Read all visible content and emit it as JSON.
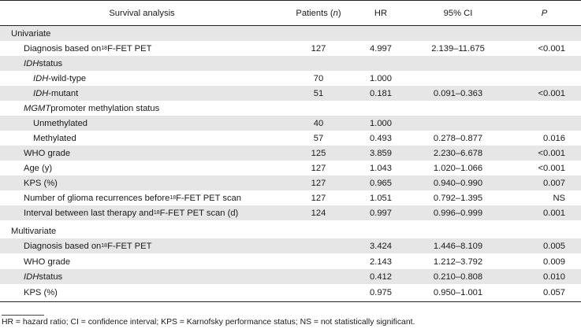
{
  "header": {
    "analysis": "Survival analysis",
    "patients_prefix": "Patients (",
    "patients_n": "n",
    "patients_suffix": ")",
    "hr": "HR",
    "ci": "95% CI",
    "p": "P"
  },
  "rows": {
    "univariate": {
      "label": "Univariate"
    },
    "diag_u": {
      "pre": "Diagnosis based on ",
      "sup": "18",
      "post": "F-FET PET",
      "patients": "127",
      "hr": "4.997",
      "ci": "2.139–11.675",
      "p": "<0.001"
    },
    "idh_status": {
      "ital": "IDH",
      "post": " status"
    },
    "idh_wt": {
      "ital": "IDH",
      "post": "-wild-type",
      "patients": "70",
      "hr": "1.000"
    },
    "idh_mut": {
      "ital": "IDH",
      "post": "-mutant",
      "patients": "51",
      "hr": "0.181",
      "ci": "0.091–0.363",
      "p": "<0.001"
    },
    "mgmt": {
      "ital": "MGMT",
      "post": " promoter methylation status"
    },
    "unmeth": {
      "label": "Unmethylated",
      "patients": "40",
      "hr": "1.000"
    },
    "meth": {
      "label": "Methylated",
      "patients": "57",
      "hr": "0.493",
      "ci": "0.278–0.877",
      "p": "0.016"
    },
    "who_u": {
      "label": "WHO grade",
      "patients": "125",
      "hr": "3.859",
      "ci": "2.230–6.678",
      "p": "<0.001"
    },
    "age": {
      "label": "Age (y)",
      "patients": "127",
      "hr": "1.043",
      "ci": "1.020–1.066",
      "p": "<0.001"
    },
    "kps_u": {
      "label": "KPS (%)",
      "patients": "127",
      "hr": "0.965",
      "ci": "0.940–0.990",
      "p": "0.007"
    },
    "recur": {
      "pre": "Number of glioma recurrences before ",
      "sup": "18",
      "post": "F-FET PET scan",
      "patients": "127",
      "hr": "1.051",
      "ci": "0.792–1.395",
      "p": "NS"
    },
    "interval": {
      "pre": "Interval between last therapy and ",
      "sup": "18",
      "post": "F-FET PET scan (d)",
      "patients": "124",
      "hr": "0.997",
      "ci": "0.996–0.999",
      "p": "0.001"
    },
    "multivariate": {
      "label": "Multivariate"
    },
    "diag_m": {
      "pre": "Diagnosis based on ",
      "sup": "18",
      "post": "F-FET PET",
      "hr": "3.424",
      "ci": "1.446–8.109",
      "p": "0.005"
    },
    "who_m": {
      "label": "WHO grade",
      "hr": "2.143",
      "ci": "1.212–3.792",
      "p": "0.009"
    },
    "idh_m": {
      "ital": "IDH",
      "post": " status",
      "hr": "0.412",
      "ci": "0.210–0.808",
      "p": "0.010"
    },
    "kps_m": {
      "label": "KPS (%)",
      "hr": "0.975",
      "ci": "0.950–1.001",
      "p": "0.057"
    }
  },
  "footnote": "HR = hazard ratio; CI = confidence interval; KPS = Karnofsky performance status; NS = not statistically significant."
}
